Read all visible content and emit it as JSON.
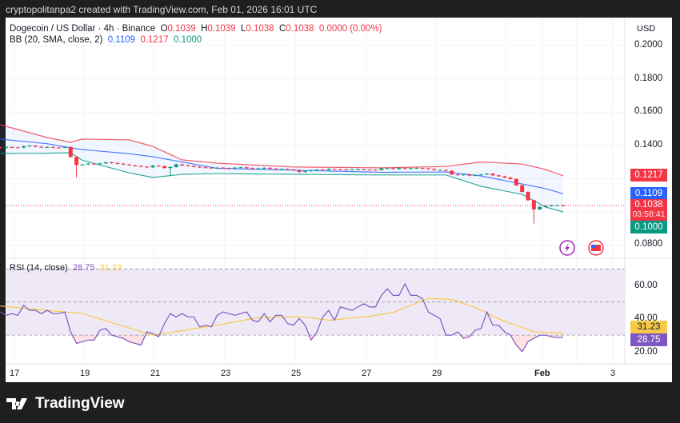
{
  "credit": "cryptopolitanpa2 created with TradingView.com, Feb 01, 2026 16:01 UTC",
  "legend": {
    "symbol": "Dogecoin / US Dollar · 4h · Binance",
    "o_label": "O",
    "o": "0.1039",
    "h_label": "H",
    "h": "0.1039",
    "l_label": "L",
    "l": "0.1038",
    "c_label": "C",
    "c": "0.1038",
    "change": "0.0000 (0.00%)",
    "bb_label": "BB (20, SMA, close, 2)",
    "bb_basis": "0.1109",
    "bb_upper": "0.1217",
    "bb_lower": "0.1000",
    "rsi_label": "RSI (14, close)",
    "rsi_value": "28.75",
    "rsi_ma": "31.23"
  },
  "currency": "USD",
  "footer_brand": "TradingView",
  "icons": [
    "lightning-icon",
    "us-flag-icon"
  ],
  "price_tags": {
    "upper": "0.1217",
    "basis": "0.1109",
    "last": "0.1038",
    "countdown": "03:58:41",
    "lower": "0.1000"
  },
  "rsi_tags": {
    "ma": "31.23",
    "rsi": "28.75"
  },
  "chart_data": [
    {
      "type": "candlestick",
      "interval": "4h",
      "ylim": [
        0.07,
        0.21
      ],
      "grid": true,
      "y_ticks": [
        "0.2000",
        "0.1800",
        "0.1600",
        "0.1400",
        "0.0800"
      ],
      "x_ticks": [
        "17",
        "19",
        "21",
        "23",
        "25",
        "27",
        "29",
        "Feb",
        "3"
      ],
      "colors": {
        "up": "#089981",
        "down": "#f23645",
        "bb_upper": "#f23645",
        "bb_basis": "#2962ff",
        "bb_lower": "#089981"
      },
      "close": [
        0.1385,
        0.139,
        0.1388,
        0.1387,
        0.1395,
        0.1398,
        0.1392,
        0.1388,
        0.139,
        0.1387,
        0.1386,
        0.139,
        0.133,
        0.1282,
        0.1285,
        0.129,
        0.1288,
        0.1292,
        0.1298,
        0.1294,
        0.129,
        0.1285,
        0.128,
        0.1276,
        0.1272,
        0.1268,
        0.1278,
        0.1275,
        0.1264,
        0.127,
        0.1286,
        0.128,
        0.1277,
        0.1271,
        0.1268,
        0.1266,
        0.1265,
        0.1266,
        0.1264,
        0.1262,
        0.1266,
        0.1268,
        0.1263,
        0.1262,
        0.1262,
        0.1265,
        0.126,
        0.1257,
        0.1258,
        0.1255,
        0.125,
        0.124,
        0.1245,
        0.125,
        0.1254,
        0.1252,
        0.1258,
        0.1256,
        0.1255,
        0.1254,
        0.1255,
        0.1256,
        0.1254,
        0.1253,
        0.1252,
        0.1262,
        0.1263,
        0.1258,
        0.1265,
        0.126,
        0.1263,
        0.1264,
        0.1262,
        0.1258,
        0.1252,
        0.1252,
        0.1247,
        0.1225,
        0.1222,
        0.1225,
        0.1218,
        0.1222,
        0.1225,
        0.123,
        0.122,
        0.1214,
        0.1207,
        0.1198,
        0.116,
        0.112,
        0.107,
        0.1015,
        0.103,
        0.1036,
        0.104,
        0.104,
        0.1038
      ],
      "wick_lows": {
        "13": 0.1207,
        "29": 0.1218,
        "91": 0.093
      },
      "bollinger": {
        "bar_index": [
          0,
          8,
          12,
          14,
          22,
          26,
          31,
          37,
          50,
          65,
          76,
          82,
          89,
          93,
          96
        ],
        "upper": [
          0.1524,
          0.1447,
          0.1418,
          0.1438,
          0.1433,
          0.1394,
          0.1313,
          0.1293,
          0.127,
          0.1265,
          0.1273,
          0.13,
          0.1288,
          0.1255,
          0.1217
        ],
        "basis": [
          0.1438,
          0.141,
          0.1385,
          0.1375,
          0.135,
          0.1332,
          0.13,
          0.1262,
          0.1251,
          0.1238,
          0.124,
          0.1216,
          0.1168,
          0.114,
          0.1109
        ],
        "lower": [
          0.1351,
          0.1353,
          0.1356,
          0.131,
          0.1235,
          0.1207,
          0.1226,
          0.123,
          0.1226,
          0.1222,
          0.1222,
          0.1154,
          0.1105,
          0.1029,
          0.1
        ]
      },
      "last_price": 0.1038
    },
    {
      "type": "line",
      "name": "RSI (14, close)",
      "ylim": [
        14,
        76
      ],
      "y_ticks": [
        "60.00",
        "40.00",
        "20.00"
      ],
      "bands": [
        70,
        50,
        30
      ],
      "colors": {
        "rsi": "#7e57c2",
        "ma": "#f7c948",
        "band": "#ede7f6"
      },
      "rsi": [
        44,
        42,
        43,
        42,
        48,
        45,
        45,
        43,
        45,
        43,
        43,
        44,
        32,
        25,
        26,
        27,
        27,
        33,
        34,
        30,
        29,
        28,
        26,
        25,
        24,
        32,
        31,
        29,
        37,
        43,
        41,
        43,
        41,
        41,
        35,
        36,
        35,
        42,
        44,
        43,
        42,
        43,
        44,
        39,
        38,
        43,
        38,
        42,
        42,
        37,
        36,
        40,
        36,
        27,
        32,
        41,
        45,
        39,
        47,
        46,
        45,
        47,
        49,
        47,
        47,
        54,
        58,
        54,
        54,
        61,
        54,
        54,
        52,
        44,
        42,
        40,
        30,
        30,
        32,
        28,
        29,
        33,
        34,
        44,
        36,
        36,
        32,
        30,
        24,
        20,
        26,
        28,
        30,
        30,
        29,
        28.5,
        28.75
      ],
      "ma": {
        "bar_index": [
          0,
          14,
          26,
          37,
          44,
          52,
          56,
          63,
          67,
          73,
          77,
          81,
          85,
          91,
          96
        ],
        "values": [
          47.6,
          43,
          30,
          36,
          40.6,
          41,
          39,
          41.4,
          43.7,
          52.2,
          51.5,
          46.8,
          39.8,
          32,
          31.23
        ]
      }
    }
  ]
}
